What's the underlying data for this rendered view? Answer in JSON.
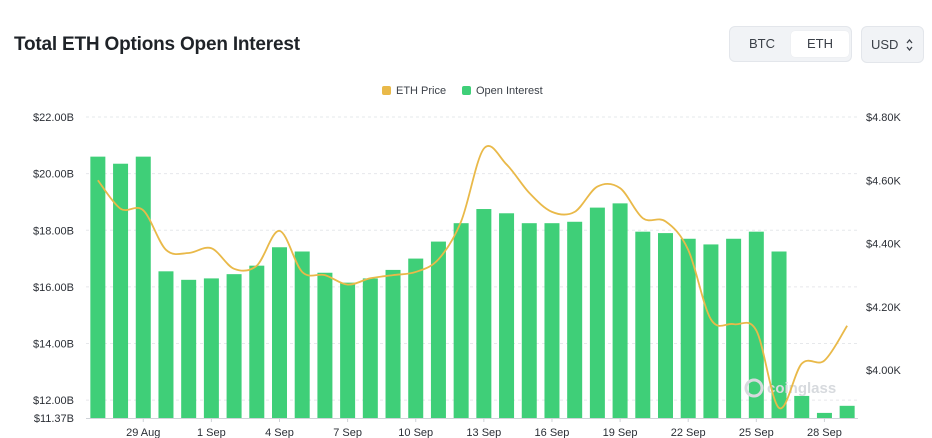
{
  "header": {
    "title": "Total ETH Options Open Interest",
    "toggle": {
      "btc_label": "BTC",
      "eth_label": "ETH",
      "selected": "ETH"
    },
    "currency": {
      "label": "USD",
      "icon": "up-down-chevron-icon"
    }
  },
  "watermark": {
    "text": "coinglass",
    "icon": "coinglass-logo-icon"
  },
  "chart_data": {
    "type": "bar",
    "title": "Total ETH Options Open Interest",
    "legend": [
      {
        "name": "ETH Price",
        "color": "#e9b949"
      },
      {
        "name": "Open Interest",
        "color": "#3fcf78"
      }
    ],
    "legend_position": "top-center",
    "grid": true,
    "x_tick_labels": [
      "29 Aug",
      "1 Sep",
      "4 Sep",
      "7 Sep",
      "10 Sep",
      "13 Sep",
      "16 Sep",
      "19 Sep",
      "22 Sep",
      "25 Sep",
      "28 Sep"
    ],
    "x_tick_bar_index": [
      2,
      5,
      8,
      11,
      14,
      17,
      20,
      23,
      26,
      29,
      32
    ],
    "y_left": {
      "ticks": [
        22,
        20,
        18,
        16,
        14,
        12,
        11.37
      ],
      "tick_labels": [
        "$22.00B",
        "$20.00B",
        "$18.00B",
        "$16.00B",
        "$14.00B",
        "$12.00B",
        "$11.37B"
      ],
      "range": [
        11.37,
        22
      ]
    },
    "y_right": {
      "ticks": [
        4800,
        4600,
        4400,
        4200,
        4000
      ],
      "tick_labels": [
        "$4.80K",
        "$4.60K",
        "$4.40K",
        "$4.20K",
        "$4.00K"
      ],
      "range": [
        3850,
        4800
      ]
    },
    "series": [
      {
        "name": "Open Interest",
        "type": "bar",
        "color": "#3fcf78",
        "axis": "left",
        "values": [
          20.6,
          20.35,
          20.6,
          16.55,
          16.25,
          16.3,
          16.45,
          16.75,
          17.4,
          17.25,
          16.5,
          16.15,
          16.3,
          16.6,
          17.0,
          17.6,
          18.25,
          18.75,
          18.6,
          18.25,
          18.25,
          18.3,
          18.8,
          18.95,
          17.95,
          17.9,
          17.7,
          17.5,
          17.7,
          17.95,
          17.25,
          12.15,
          11.55,
          11.8
        ]
      },
      {
        "name": "ETH Price",
        "type": "line",
        "color": "#e9b949",
        "axis": "right",
        "values": [
          4600,
          4510,
          4505,
          4380,
          4370,
          4385,
          4320,
          4330,
          4440,
          4310,
          4300,
          4270,
          4290,
          4300,
          4310,
          4350,
          4470,
          4700,
          4650,
          4560,
          4500,
          4500,
          4580,
          4575,
          4480,
          4470,
          4380,
          4160,
          4145,
          4125,
          3880,
          4020,
          4030,
          4140
        ]
      }
    ]
  }
}
